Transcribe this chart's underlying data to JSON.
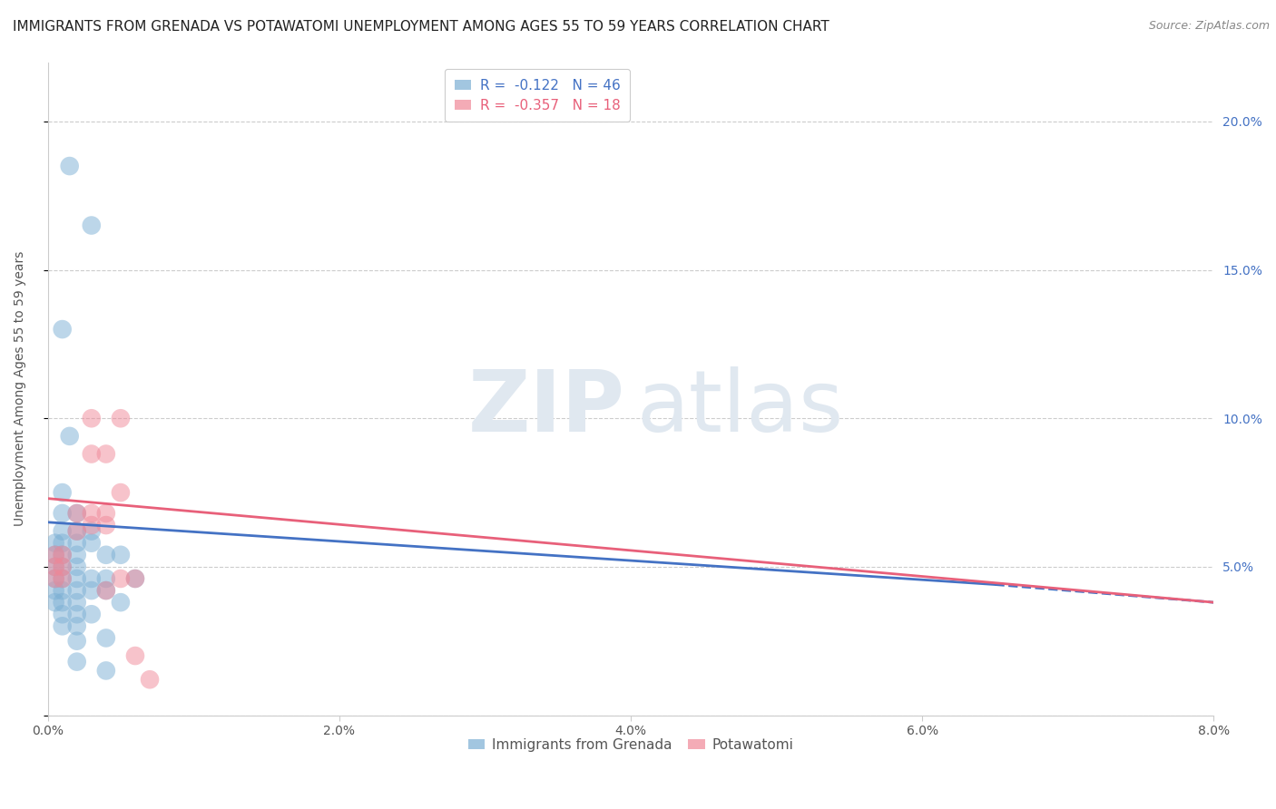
{
  "title": "IMMIGRANTS FROM GRENADA VS POTAWATOMI UNEMPLOYMENT AMONG AGES 55 TO 59 YEARS CORRELATION CHART",
  "source": "Source: ZipAtlas.com",
  "ylabel_left": "Unemployment Among Ages 55 to 59 years",
  "xlim": [
    0.0,
    0.08
  ],
  "ylim": [
    0.0,
    0.22
  ],
  "legend_footer": [
    "Immigrants from Grenada",
    "Potawatomi"
  ],
  "blue_scatter": [
    [
      0.0015,
      0.185
    ],
    [
      0.003,
      0.165
    ],
    [
      0.001,
      0.13
    ],
    [
      0.0015,
      0.094
    ],
    [
      0.001,
      0.075
    ],
    [
      0.001,
      0.068
    ],
    [
      0.002,
      0.068
    ],
    [
      0.001,
      0.062
    ],
    [
      0.002,
      0.062
    ],
    [
      0.003,
      0.062
    ],
    [
      0.0005,
      0.058
    ],
    [
      0.001,
      0.058
    ],
    [
      0.002,
      0.058
    ],
    [
      0.003,
      0.058
    ],
    [
      0.0005,
      0.054
    ],
    [
      0.001,
      0.054
    ],
    [
      0.002,
      0.054
    ],
    [
      0.0005,
      0.05
    ],
    [
      0.001,
      0.05
    ],
    [
      0.002,
      0.05
    ],
    [
      0.0005,
      0.046
    ],
    [
      0.001,
      0.046
    ],
    [
      0.002,
      0.046
    ],
    [
      0.003,
      0.046
    ],
    [
      0.0005,
      0.042
    ],
    [
      0.001,
      0.042
    ],
    [
      0.002,
      0.042
    ],
    [
      0.003,
      0.042
    ],
    [
      0.0005,
      0.038
    ],
    [
      0.001,
      0.038
    ],
    [
      0.002,
      0.038
    ],
    [
      0.001,
      0.034
    ],
    [
      0.002,
      0.034
    ],
    [
      0.003,
      0.034
    ],
    [
      0.001,
      0.03
    ],
    [
      0.002,
      0.03
    ],
    [
      0.002,
      0.025
    ],
    [
      0.002,
      0.018
    ],
    [
      0.004,
      0.054
    ],
    [
      0.005,
      0.054
    ],
    [
      0.004,
      0.046
    ],
    [
      0.004,
      0.042
    ],
    [
      0.005,
      0.038
    ],
    [
      0.004,
      0.026
    ],
    [
      0.004,
      0.015
    ],
    [
      0.006,
      0.046
    ]
  ],
  "pink_scatter": [
    [
      0.0005,
      0.054
    ],
    [
      0.001,
      0.054
    ],
    [
      0.0005,
      0.05
    ],
    [
      0.001,
      0.05
    ],
    [
      0.0005,
      0.046
    ],
    [
      0.001,
      0.046
    ],
    [
      0.002,
      0.068
    ],
    [
      0.002,
      0.062
    ],
    [
      0.003,
      0.1
    ],
    [
      0.003,
      0.088
    ],
    [
      0.003,
      0.068
    ],
    [
      0.003,
      0.064
    ],
    [
      0.004,
      0.088
    ],
    [
      0.004,
      0.068
    ],
    [
      0.004,
      0.064
    ],
    [
      0.004,
      0.042
    ],
    [
      0.005,
      0.1
    ],
    [
      0.005,
      0.046
    ],
    [
      0.006,
      0.02
    ],
    [
      0.007,
      0.012
    ],
    [
      0.005,
      0.075
    ],
    [
      0.006,
      0.046
    ]
  ],
  "blue_line_solid": {
    "x0": 0.0,
    "y0": 0.065,
    "x1": 0.065,
    "y1": 0.044
  },
  "blue_line_dash": {
    "x0": 0.065,
    "y0": 0.044,
    "x1": 0.08,
    "y1": 0.038
  },
  "pink_line_solid": {
    "x0": 0.0,
    "y0": 0.073,
    "x1": 0.08,
    "y1": 0.038
  },
  "blue_color": "#7bafd4",
  "pink_color": "#f08898",
  "blue_line_color": "#4472c4",
  "pink_line_color": "#e8607a",
  "background_color": "#ffffff",
  "grid_color": "#cccccc",
  "title_fontsize": 11,
  "axis_label_fontsize": 10,
  "tick_fontsize": 10,
  "right_tick_color": "#4472c4"
}
